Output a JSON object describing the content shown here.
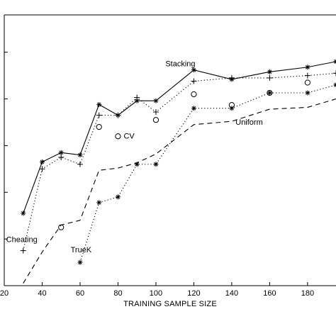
{
  "chart_data": {
    "type": "line",
    "title": "",
    "xlabel": "TRAINING SAMPLE SIZE",
    "ylabel": "",
    "xlim": [
      20,
      195
    ],
    "ylim": [
      0,
      5.8
    ],
    "grid": false,
    "xticks": [
      20,
      40,
      60,
      80,
      100,
      120,
      140,
      160,
      180
    ],
    "tick_labels_x": [
      "20",
      "40",
      "60",
      "80",
      "100",
      "120",
      "140",
      "160",
      "180"
    ],
    "yticks": [
      1,
      2,
      3,
      4,
      5
    ],
    "series": [
      {
        "name": "Stacking",
        "style": "solid",
        "marker": "asterisk",
        "x": [
          30,
          40,
          50,
          60,
          70,
          80,
          90,
          100,
          120,
          140,
          160,
          180,
          195
        ],
        "y": [
          1.55,
          2.65,
          2.85,
          2.8,
          3.88,
          3.65,
          3.96,
          3.96,
          4.62,
          4.42,
          4.58,
          4.68,
          4.8
        ]
      },
      {
        "name": "Cheating",
        "style": "dotted",
        "marker": "plus",
        "x": [
          30,
          40,
          50,
          60,
          70,
          80,
          90,
          100,
          120,
          140,
          160,
          180,
          195
        ],
        "y": [
          0.75,
          2.5,
          2.75,
          2.6,
          3.65,
          3.65,
          4.03,
          3.72,
          4.38,
          4.45,
          4.45,
          4.5,
          4.55
        ]
      },
      {
        "name": "CV",
        "style": "none",
        "marker": "circle",
        "x": [
          50,
          70,
          80,
          100,
          120,
          140,
          160,
          180
        ],
        "y": [
          1.25,
          3.4,
          3.2,
          3.55,
          4.1,
          3.87,
          4.13,
          4.35
        ]
      },
      {
        "name": "TrueK",
        "style": "dotted",
        "marker": "asterisk",
        "x": [
          60,
          70,
          80,
          90,
          100,
          120,
          140,
          160,
          180,
          195
        ],
        "y": [
          0.5,
          1.78,
          1.9,
          2.6,
          2.6,
          3.8,
          3.8,
          4.13,
          4.13,
          4.3
        ]
      },
      {
        "name": "Uniform",
        "style": "dashed",
        "marker": "none",
        "x": [
          30,
          40,
          50,
          60,
          70,
          80,
          90,
          100,
          120,
          140,
          160,
          180,
          195
        ],
        "y": [
          0.05,
          0.72,
          1.3,
          1.4,
          2.47,
          2.52,
          2.63,
          2.82,
          3.45,
          3.52,
          3.78,
          3.82,
          4.0
        ]
      }
    ],
    "annotations": [
      {
        "text": "Stacking",
        "x": 105,
        "y": 4.7
      },
      {
        "text": "CV",
        "x": 83,
        "y": 3.15
      },
      {
        "text": "Uniform",
        "x": 142,
        "y": 3.45
      },
      {
        "text": "Cheating",
        "x": 21,
        "y": 0.93
      },
      {
        "text": "TrueK",
        "x": 55,
        "y": 0.71
      }
    ]
  }
}
